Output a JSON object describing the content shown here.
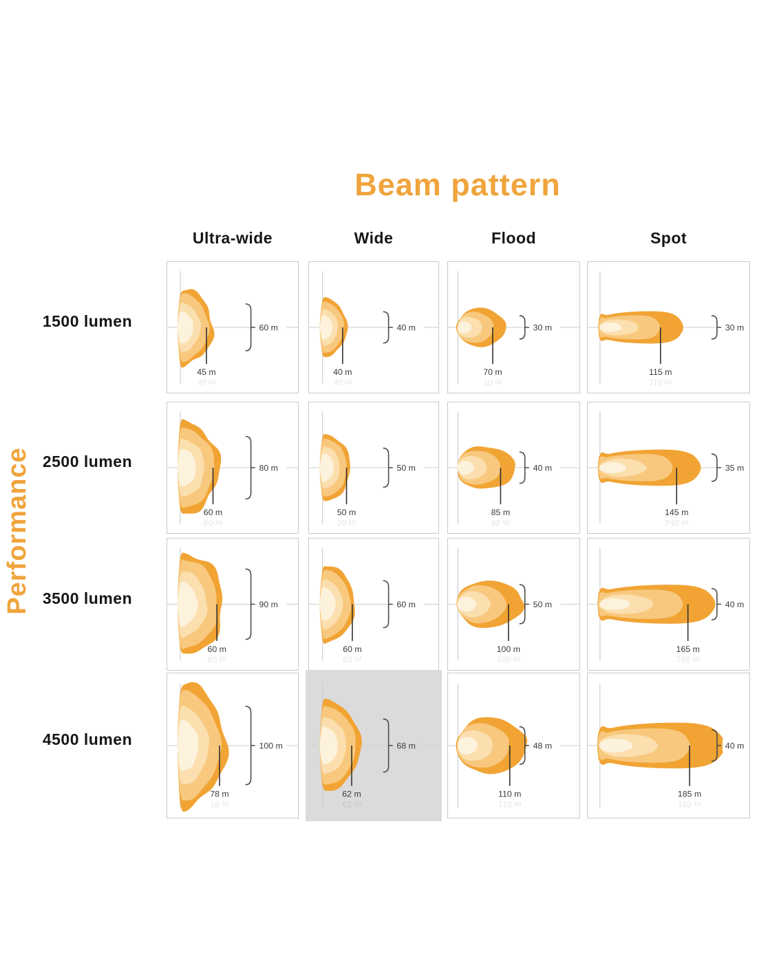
{
  "title": "Beam pattern",
  "y_axis_label": "Performance",
  "columns": [
    "Ultra-wide",
    "Wide",
    "Flood",
    "Spot"
  ],
  "rows": [
    {
      "label": "1500 lumen",
      "cells": [
        {
          "beam_width": "60 m",
          "beam_distance": "45 m",
          "highlighted": false
        },
        {
          "beam_width": "40 m",
          "beam_distance": "40 m",
          "highlighted": false
        },
        {
          "beam_width": "30 m",
          "beam_distance": "70 m",
          "highlighted": false
        },
        {
          "beam_width": "30 m",
          "beam_distance": "115 m",
          "highlighted": false
        }
      ]
    },
    {
      "label": "2500 lumen",
      "cells": [
        {
          "beam_width": "80 m",
          "beam_distance": "60 m",
          "highlighted": false
        },
        {
          "beam_width": "50 m",
          "beam_distance": "50 m",
          "highlighted": false
        },
        {
          "beam_width": "40 m",
          "beam_distance": "85 m",
          "highlighted": false
        },
        {
          "beam_width": "35 m",
          "beam_distance": "145 m",
          "highlighted": false
        }
      ]
    },
    {
      "label": "3500 lumen",
      "cells": [
        {
          "beam_width": "90 m",
          "beam_distance": "60 m",
          "highlighted": false
        },
        {
          "beam_width": "60 m",
          "beam_distance": "60 m",
          "highlighted": false
        },
        {
          "beam_width": "50 m",
          "beam_distance": "100 m",
          "highlighted": false
        },
        {
          "beam_width": "40 m",
          "beam_distance": "165 m",
          "highlighted": false
        }
      ]
    },
    {
      "label": "4500 lumen",
      "cells": [
        {
          "beam_width": "100 m",
          "beam_distance": "78 m",
          "highlighted": false
        },
        {
          "beam_width": "68 m",
          "beam_distance": "62 m",
          "highlighted": true
        },
        {
          "beam_width": "48 m",
          "beam_distance": "110 m",
          "highlighted": false
        },
        {
          "beam_width": "40 m",
          "beam_distance": "185 m",
          "highlighted": false
        }
      ]
    }
  ],
  "colors": {
    "accent_orange": "#F0A43C",
    "beam_layers": [
      "#F1A434",
      "#F8C87E",
      "#FBDFAE",
      "#FDF2DC"
    ],
    "highlight_cell_bg": "#DBDBDB",
    "guide_line": "#CDCDCD",
    "marker_line": "#2F2F2F",
    "label_text": "#3A3A3A"
  },
  "chart_data": {
    "type": "table",
    "title": "Beam pattern",
    "row_axis_label": "Performance",
    "rows": [
      "1500 lumen",
      "2500 lumen",
      "3500 lumen",
      "4500 lumen"
    ],
    "columns": [
      "Ultra-wide",
      "Wide",
      "Flood",
      "Spot"
    ],
    "beam_width_m": [
      [
        60,
        40,
        30,
        30
      ],
      [
        80,
        50,
        40,
        35
      ],
      [
        90,
        60,
        50,
        40
      ],
      [
        100,
        68,
        48,
        40
      ]
    ],
    "beam_distance_m": [
      [
        45,
        40,
        70,
        115
      ],
      [
        60,
        50,
        85,
        145
      ],
      [
        60,
        60,
        100,
        165
      ],
      [
        78,
        62,
        110,
        185
      ]
    ],
    "highlighted_cell": {
      "row": "4500 lumen",
      "column": "Wide"
    }
  }
}
